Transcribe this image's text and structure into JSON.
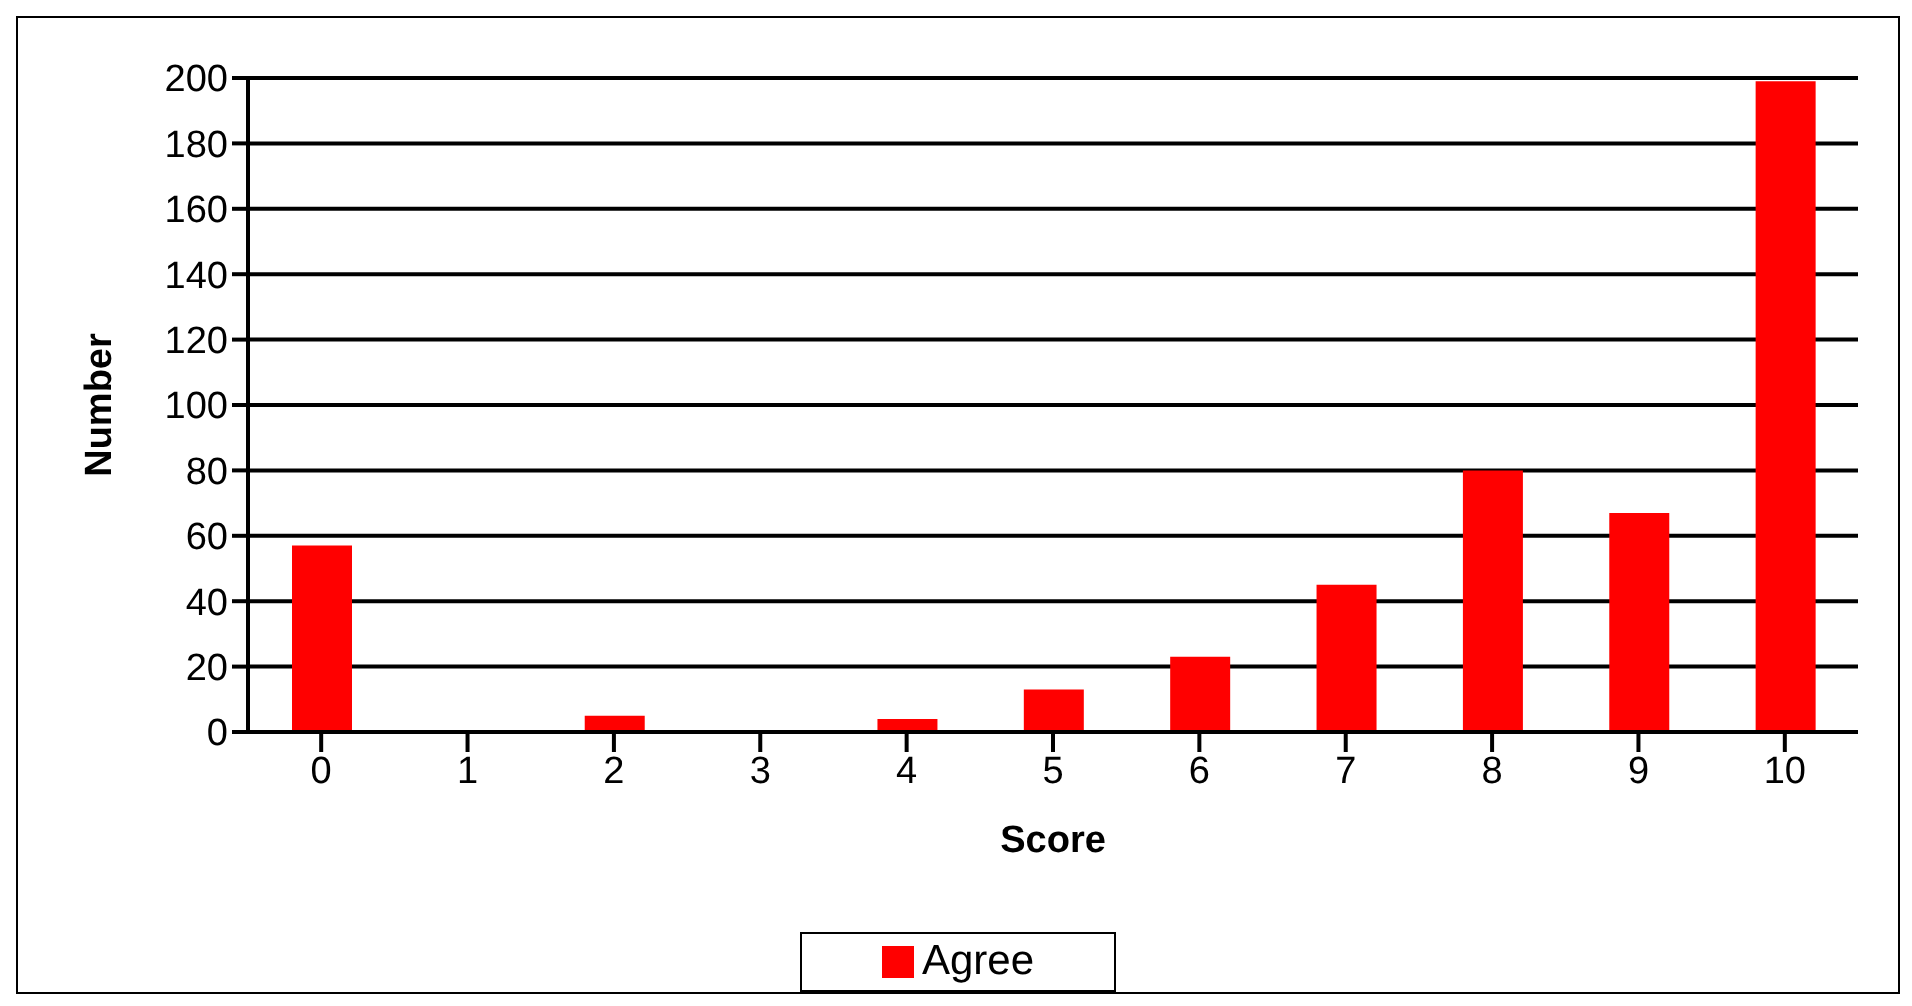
{
  "chart_data": {
    "type": "bar",
    "xlabel": "Score",
    "ylabel": "Number",
    "categories": [
      "0",
      "1",
      "2",
      "3",
      "4",
      "5",
      "6",
      "7",
      "8",
      "9",
      "10"
    ],
    "series": [
      {
        "name": "Agree",
        "color": "#ff0000",
        "values": [
          57,
          0,
          5,
          0,
          4,
          13,
          23,
          45,
          80,
          67,
          199
        ]
      }
    ],
    "ylim": [
      0,
      200
    ],
    "yticks": [
      0,
      20,
      40,
      60,
      80,
      100,
      120,
      140,
      160,
      180,
      200
    ],
    "grid": "y",
    "legend": "bottom"
  }
}
